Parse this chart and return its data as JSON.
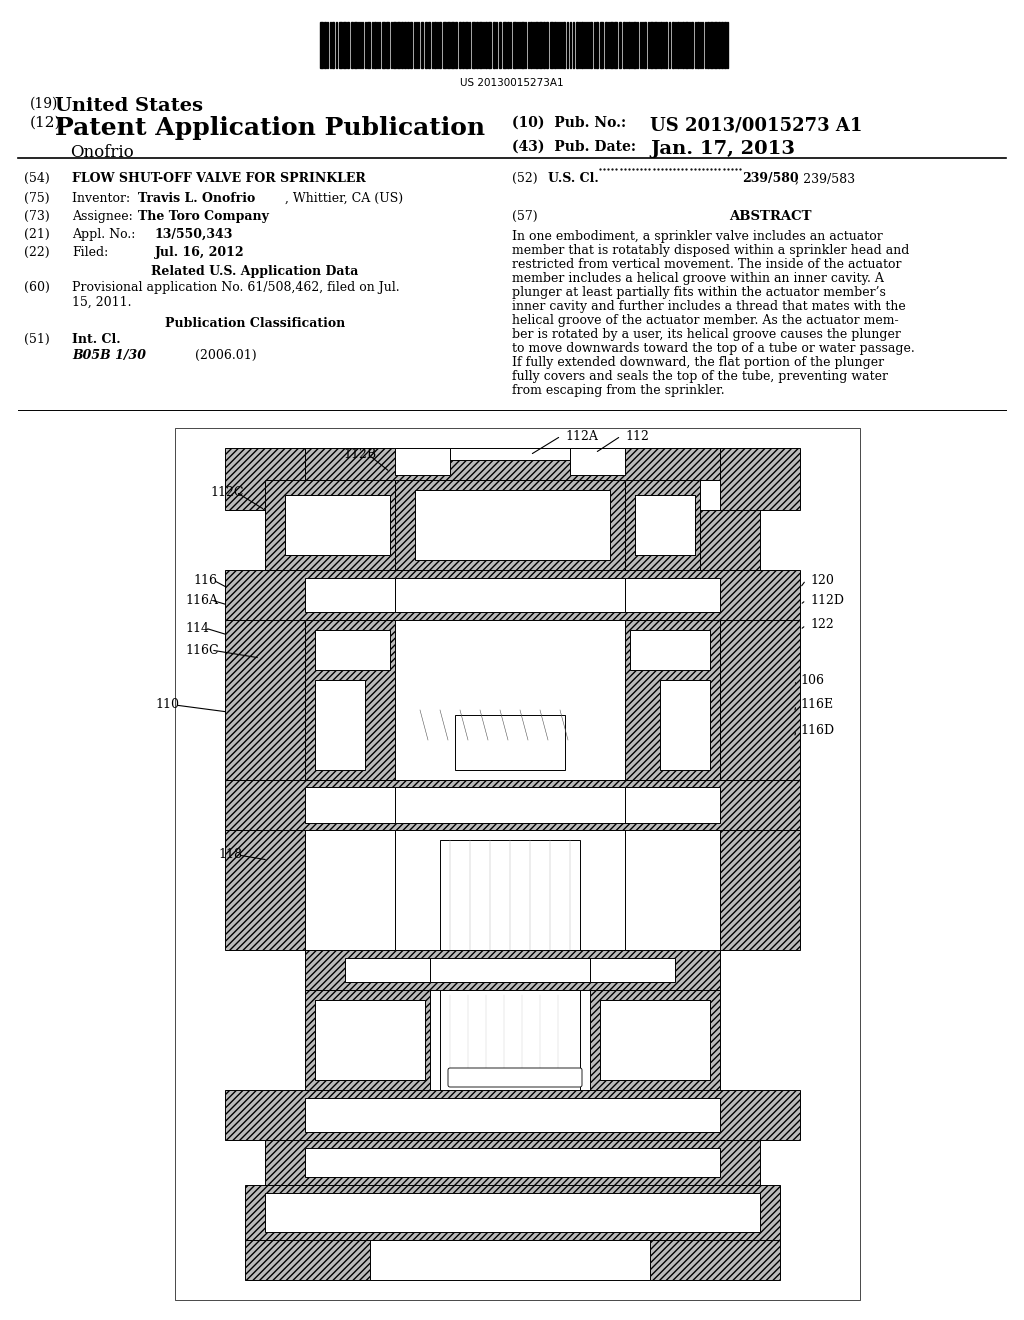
{
  "background_color": "#ffffff",
  "barcode_text": "US 20130015273A1",
  "title_19_small": "(19)",
  "title_19_large": "United States",
  "title_12_small": "(12)",
  "title_12_large": "Patent Application Publication",
  "inventor_name": "Onofrio",
  "pub_no_label": "(10)  Pub. No.:",
  "pub_no_value": "US 2013/0015273 A1",
  "pub_date_label": "(43)  Pub. Date:",
  "pub_date_value": "Jan. 17, 2013",
  "field_54_label": "(54)",
  "field_54_value": "FLOW SHUT-OFF VALVE FOR SPRINKLER",
  "field_52_label": "(52)",
  "field_75_label": "(75)",
  "field_73_label": "(73)",
  "field_21_label": "(21)",
  "field_22_label": "(22)",
  "field_60_label": "(60)",
  "field_51_label": "(51)",
  "field_57_label": "(57)",
  "related_header": "Related U.S. Application Data",
  "pub_class_header": "Publication Classification",
  "field_57_header": "ABSTRACT",
  "abstract_lines": [
    "In one embodiment, a sprinkler valve includes an actuator",
    "member that is rotatably disposed within a sprinkler head and",
    "restricted from vertical movement. The inside of the actuator",
    "member includes a helical groove within an inner cavity. A",
    "plunger at least partially fits within the actuator member’s",
    "inner cavity and further includes a thread that mates with the",
    "helical groove of the actuator member. As the actuator mem-",
    "ber is rotated by a user, its helical groove causes the plunger",
    "to move downwards toward the top of a tube or water passage.",
    "If fully extended downward, the flat portion of the plunger",
    "fully covers and seals the top of the tube, preventing water",
    "from escaping from the sprinkler."
  ],
  "diagram": {
    "bg": "#ffffff",
    "hatch_color": "#333333",
    "hatch_bg": "#cccccc",
    "line_color": "#000000",
    "lw": 0.7
  }
}
